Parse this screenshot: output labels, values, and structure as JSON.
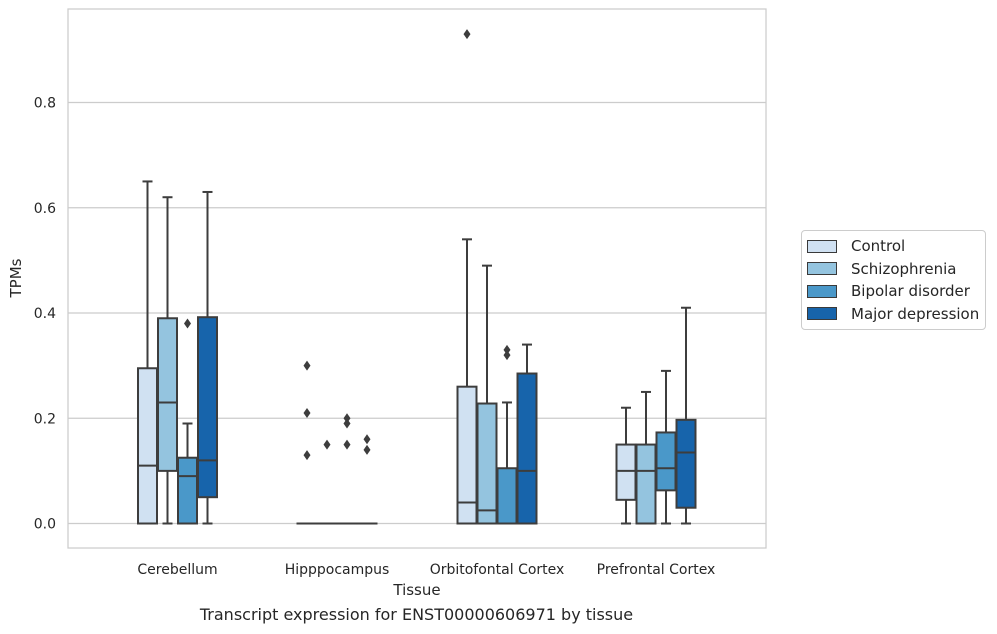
{
  "chart_data": {
    "type": "box",
    "xlabel": "Tissue",
    "ylabel": "TPMs",
    "caption": "Transcript expression for ENST00000606971 by tissue",
    "ylim": [
      -0.045,
      0.98
    ],
    "yticks": [
      "0.0",
      "0.2",
      "0.4",
      "0.6",
      "0.8"
    ],
    "grid": "horizontal",
    "legend_placement": "right",
    "categories": [
      "Cerebellum",
      "Hipppocampus",
      "Orbitofontal Cortex",
      "Prefrontal Cortex"
    ],
    "series": [
      {
        "name": "Control",
        "color": "#d0e1f2",
        "boxes": [
          {
            "whislo": 0.0,
            "q1": 0.0,
            "med": 0.11,
            "q3": 0.295,
            "whishi": 0.65,
            "fliers": []
          },
          {
            "whislo": 0.0,
            "q1": 0.0,
            "med": 0.0,
            "q3": 0.0,
            "whishi": 0.0,
            "fliers": [
              0.13,
              0.21,
              0.3
            ]
          },
          {
            "whislo": 0.0,
            "q1": 0.0,
            "med": 0.04,
            "q3": 0.26,
            "whishi": 0.54,
            "fliers": [
              0.93
            ]
          },
          {
            "whislo": 0.0,
            "q1": 0.045,
            "med": 0.1,
            "q3": 0.15,
            "whishi": 0.22,
            "fliers": []
          }
        ]
      },
      {
        "name": "Schizophrenia",
        "color": "#94c4df",
        "boxes": [
          {
            "whislo": 0.0,
            "q1": 0.1,
            "med": 0.23,
            "q3": 0.39,
            "whishi": 0.62,
            "fliers": []
          },
          {
            "whislo": 0.0,
            "q1": 0.0,
            "med": 0.0,
            "q3": 0.0,
            "whishi": 0.0,
            "fliers": [
              0.15
            ]
          },
          {
            "whislo": 0.0,
            "q1": 0.0,
            "med": 0.025,
            "q3": 0.228,
            "whishi": 0.49,
            "fliers": []
          },
          {
            "whislo": 0.0,
            "q1": 0.0,
            "med": 0.1,
            "q3": 0.15,
            "whishi": 0.25,
            "fliers": []
          }
        ]
      },
      {
        "name": "Bipolar disorder",
        "color": "#4a98c9",
        "boxes": [
          {
            "whislo": 0.0,
            "q1": 0.0,
            "med": 0.09,
            "q3": 0.125,
            "whishi": 0.19,
            "fliers": [
              0.38
            ]
          },
          {
            "whislo": 0.0,
            "q1": 0.0,
            "med": 0.0,
            "q3": 0.0,
            "whishi": 0.0,
            "fliers": [
              0.15,
              0.19,
              0.2
            ]
          },
          {
            "whislo": 0.0,
            "q1": 0.0,
            "med": 0.0,
            "q3": 0.105,
            "whishi": 0.23,
            "fliers": [
              0.32,
              0.33
            ]
          },
          {
            "whislo": 0.0,
            "q1": 0.063,
            "med": 0.105,
            "q3": 0.173,
            "whishi": 0.29,
            "fliers": []
          }
        ]
      },
      {
        "name": "Major depression",
        "color": "#1764ab",
        "boxes": [
          {
            "whislo": 0.0,
            "q1": 0.05,
            "med": 0.12,
            "q3": 0.392,
            "whishi": 0.63,
            "fliers": []
          },
          {
            "whislo": 0.0,
            "q1": 0.0,
            "med": 0.0,
            "q3": 0.0,
            "whishi": 0.0,
            "fliers": [
              0.14,
              0.16
            ]
          },
          {
            "whislo": 0.0,
            "q1": 0.0,
            "med": 0.1,
            "q3": 0.285,
            "whishi": 0.34,
            "fliers": []
          },
          {
            "whislo": 0.0,
            "q1": 0.03,
            "med": 0.135,
            "q3": 0.197,
            "whishi": 0.41,
            "fliers": []
          }
        ]
      }
    ]
  }
}
